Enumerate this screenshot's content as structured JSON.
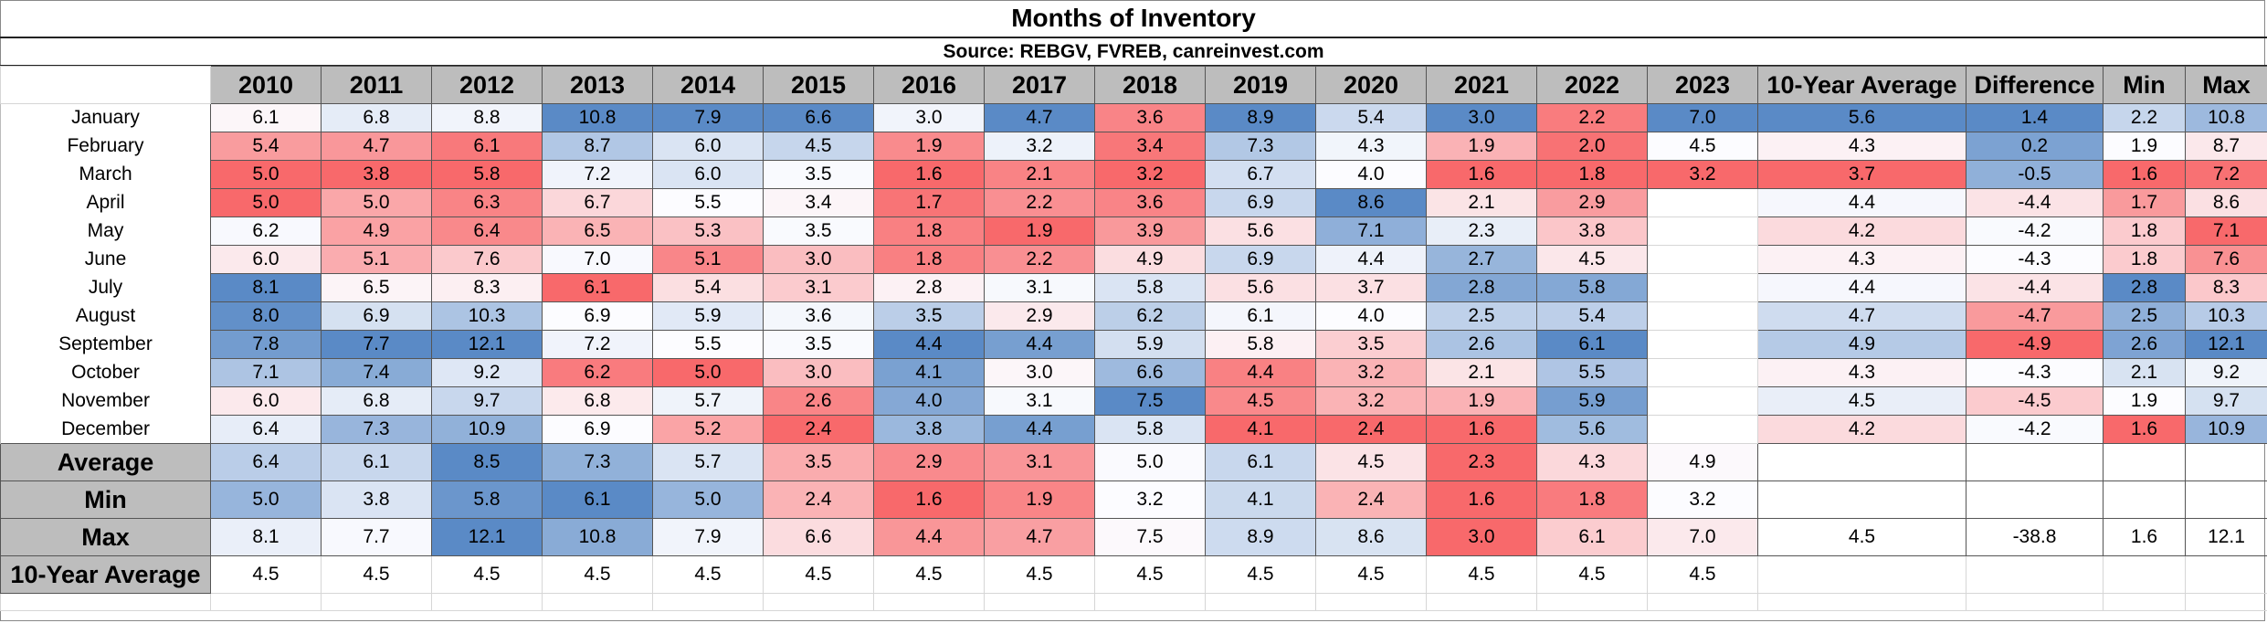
{
  "chart_data": {
    "type": "table",
    "title": "Months of Inventory",
    "subtitle": "Source: REBGV, FVREB, canreinvest.com",
    "columns": [
      "2010",
      "2011",
      "2012",
      "2013",
      "2014",
      "2015",
      "2016",
      "2017",
      "2018",
      "2019",
      "2020",
      "2021",
      "2022",
      "2023",
      "10-Year Average",
      "Difference",
      "Min",
      "Max"
    ],
    "rows": [
      {
        "label": "January",
        "values": [
          "6.1",
          "6.8",
          "8.8",
          "10.8",
          "7.9",
          "6.6",
          "3.0",
          "4.7",
          "3.6",
          "8.9",
          "5.4",
          "3.0",
          "2.2",
          "7.0",
          "5.6",
          "1.4",
          "2.2",
          "10.8"
        ]
      },
      {
        "label": "February",
        "values": [
          "5.4",
          "4.7",
          "6.1",
          "8.7",
          "6.0",
          "4.5",
          "1.9",
          "3.2",
          "3.4",
          "7.3",
          "4.3",
          "1.9",
          "2.0",
          "4.5",
          "4.3",
          "0.2",
          "1.9",
          "8.7"
        ]
      },
      {
        "label": "March",
        "values": [
          "5.0",
          "3.8",
          "5.8",
          "7.2",
          "6.0",
          "3.5",
          "1.6",
          "2.1",
          "3.2",
          "6.7",
          "4.0",
          "1.6",
          "1.8",
          "3.2",
          "3.7",
          "-0.5",
          "1.6",
          "7.2"
        ]
      },
      {
        "label": "April",
        "values": [
          "5.0",
          "5.0",
          "6.3",
          "6.7",
          "5.5",
          "3.4",
          "1.7",
          "2.2",
          "3.6",
          "6.9",
          "8.6",
          "2.1",
          "2.9",
          "",
          "4.4",
          "-4.4",
          "1.7",
          "8.6"
        ]
      },
      {
        "label": "May",
        "values": [
          "6.2",
          "4.9",
          "6.4",
          "6.5",
          "5.3",
          "3.5",
          "1.8",
          "1.9",
          "3.9",
          "5.6",
          "7.1",
          "2.3",
          "3.8",
          "",
          "4.2",
          "-4.2",
          "1.8",
          "7.1"
        ]
      },
      {
        "label": "June",
        "values": [
          "6.0",
          "5.1",
          "7.6",
          "7.0",
          "5.1",
          "3.0",
          "1.8",
          "2.2",
          "4.9",
          "6.9",
          "4.4",
          "2.7",
          "4.5",
          "",
          "4.3",
          "-4.3",
          "1.8",
          "7.6"
        ]
      },
      {
        "label": "July",
        "values": [
          "8.1",
          "6.5",
          "8.3",
          "6.1",
          "5.4",
          "3.1",
          "2.8",
          "3.1",
          "5.8",
          "5.6",
          "3.7",
          "2.8",
          "5.8",
          "",
          "4.4",
          "-4.4",
          "2.8",
          "8.3"
        ]
      },
      {
        "label": "August",
        "values": [
          "8.0",
          "6.9",
          "10.3",
          "6.9",
          "5.9",
          "3.6",
          "3.5",
          "2.9",
          "6.2",
          "6.1",
          "4.0",
          "2.5",
          "5.4",
          "",
          "4.7",
          "-4.7",
          "2.5",
          "10.3"
        ]
      },
      {
        "label": "September",
        "values": [
          "7.8",
          "7.7",
          "12.1",
          "7.2",
          "5.5",
          "3.5",
          "4.4",
          "4.4",
          "5.9",
          "5.8",
          "3.5",
          "2.6",
          "6.1",
          "",
          "4.9",
          "-4.9",
          "2.6",
          "12.1"
        ]
      },
      {
        "label": "October",
        "values": [
          "7.1",
          "7.4",
          "9.2",
          "6.2",
          "5.0",
          "3.0",
          "4.1",
          "3.0",
          "6.6",
          "4.4",
          "3.2",
          "2.1",
          "5.5",
          "",
          "4.3",
          "-4.3",
          "2.1",
          "9.2"
        ]
      },
      {
        "label": "November",
        "values": [
          "6.0",
          "6.8",
          "9.7",
          "6.8",
          "5.7",
          "2.6",
          "4.0",
          "3.1",
          "7.5",
          "4.5",
          "3.2",
          "1.9",
          "5.9",
          "",
          "4.5",
          "-4.5",
          "1.9",
          "9.7"
        ]
      },
      {
        "label": "December",
        "values": [
          "6.4",
          "7.3",
          "10.9",
          "6.9",
          "5.2",
          "2.4",
          "3.8",
          "4.4",
          "5.8",
          "4.1",
          "2.4",
          "1.6",
          "5.6",
          "",
          "4.2",
          "-4.2",
          "1.6",
          "10.9"
        ]
      }
    ],
    "summary_rows": [
      {
        "label": "Average",
        "values": [
          "6.4",
          "6.1",
          "8.5",
          "7.3",
          "5.7",
          "3.5",
          "2.9",
          "3.1",
          "5.0",
          "6.1",
          "4.5",
          "2.3",
          "4.3",
          "4.9",
          "",
          "",
          "",
          ""
        ]
      },
      {
        "label": "Min",
        "values": [
          "5.0",
          "3.8",
          "5.8",
          "6.1",
          "5.0",
          "2.4",
          "1.6",
          "1.9",
          "3.2",
          "4.1",
          "2.4",
          "1.6",
          "1.8",
          "3.2",
          "",
          "",
          "",
          ""
        ]
      },
      {
        "label": "Max",
        "values": [
          "8.1",
          "7.7",
          "12.1",
          "10.8",
          "7.9",
          "6.6",
          "4.4",
          "4.7",
          "7.5",
          "8.9",
          "8.6",
          "3.0",
          "6.1",
          "7.0",
          "4.5",
          "-38.8",
          "1.6",
          "12.1"
        ]
      },
      {
        "label": "10-Year Average",
        "values": [
          "4.5",
          "4.5",
          "4.5",
          "4.5",
          "4.5",
          "4.5",
          "4.5",
          "4.5",
          "4.5",
          "4.5",
          "4.5",
          "4.5",
          "4.5",
          "4.5",
          "",
          "",
          "",
          ""
        ]
      }
    ],
    "colors": {
      "low": "#f8696b",
      "mid": "#fcfcff",
      "high": "#5a8ac6"
    }
  }
}
